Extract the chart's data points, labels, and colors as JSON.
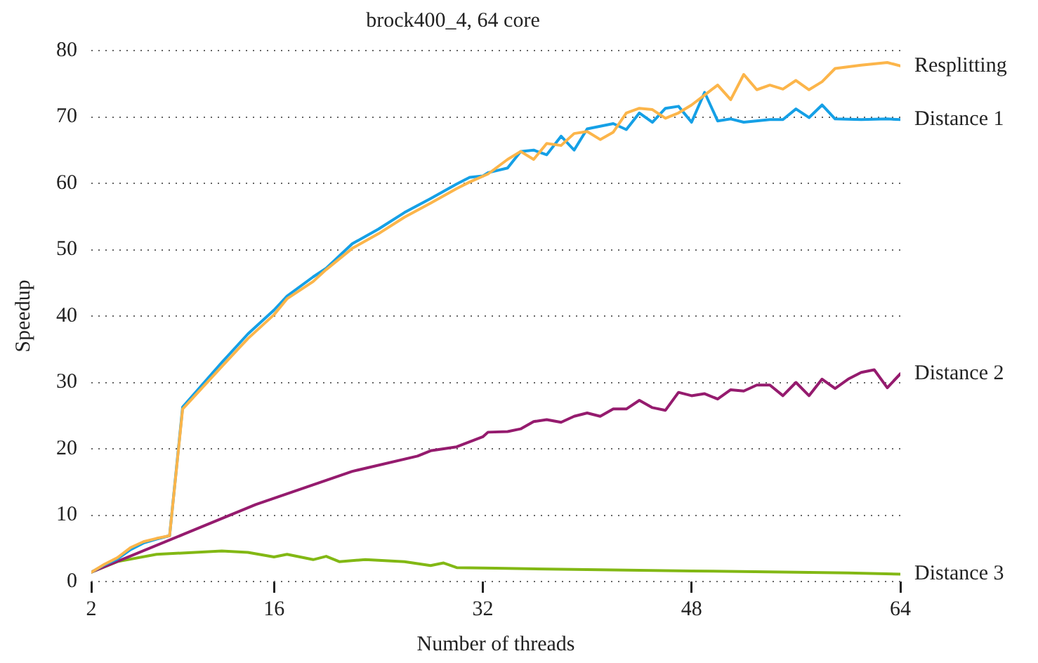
{
  "chart_data": {
    "type": "line",
    "title": "brock400_4, 64 core",
    "xlabel": "Number of threads",
    "ylabel": "Speedup",
    "xlim": [
      2,
      64
    ],
    "xticks": [
      2,
      16,
      32,
      48,
      64
    ],
    "ylim": [
      0,
      80
    ],
    "yticks": [
      0,
      10,
      20,
      30,
      40,
      50,
      60,
      70,
      80
    ],
    "grid": "y",
    "legend": false,
    "marker": "none",
    "line_style": "solid",
    "series": [
      {
        "name": "Resplitting",
        "color": "#fcb54a",
        "x": [
          2,
          3,
          4,
          5,
          6,
          7,
          8,
          9,
          12,
          14,
          16,
          17,
          19,
          20,
          22,
          24,
          26,
          28,
          30,
          31,
          32.4,
          33.9,
          34.9,
          35.9,
          36.9,
          38,
          39,
          40,
          41,
          42,
          43,
          44,
          45,
          46,
          47,
          48,
          49,
          50,
          51,
          52,
          53,
          54,
          55,
          56,
          57,
          58,
          59,
          61,
          63,
          64
        ],
        "values": [
          1.4,
          2.6,
          3.6,
          5.1,
          6.0,
          6.5,
          6.9,
          26.0,
          32.4,
          36.6,
          40.2,
          42.6,
          45.2,
          47.0,
          50.2,
          52.4,
          54.9,
          57.0,
          59.2,
          60.2,
          61.4,
          63.6,
          64.8,
          63.6,
          66.0,
          65.7,
          67.5,
          67.8,
          66.6,
          67.7,
          70.6,
          71.3,
          71.1,
          69.8,
          70.6,
          71.8,
          73.3,
          74.8,
          72.6,
          76.4,
          74.1,
          74.8,
          74.2,
          75.5,
          74.1,
          75.3,
          77.3,
          77.8,
          78.2,
          77.7
        ]
      },
      {
        "name": "Distance 1",
        "color": "#15a0e6",
        "x": [
          2,
          3,
          4,
          5,
          6,
          7,
          8,
          9,
          12,
          14,
          16,
          17,
          19,
          20,
          22,
          24,
          26,
          28,
          30,
          31,
          32,
          32.4,
          33.9,
          34.9,
          35.9,
          36.9,
          38,
          39,
          40,
          42,
          43,
          44,
          45,
          46,
          47,
          48,
          49,
          50,
          51,
          52,
          54,
          55,
          56,
          57,
          58,
          59,
          61,
          63,
          64
        ],
        "values": [
          1.4,
          2.5,
          3.4,
          4.8,
          5.8,
          6.4,
          6.9,
          26.3,
          33.0,
          37.3,
          40.9,
          43.0,
          45.9,
          47.2,
          50.9,
          53.1,
          55.6,
          57.7,
          59.9,
          60.9,
          61.1,
          61.6,
          62.3,
          64.8,
          65.0,
          64.3,
          67.1,
          65.0,
          68.2,
          69.0,
          68.1,
          70.6,
          69.2,
          71.3,
          71.6,
          69.2,
          73.7,
          69.4,
          69.7,
          69.2,
          69.6,
          69.6,
          71.2,
          69.9,
          71.8,
          69.7,
          69.6,
          69.7,
          69.6
        ]
      },
      {
        "name": "Distance 2",
        "color": "#951b6e",
        "x": [
          2,
          14.6,
          22,
          27,
          28,
          30,
          32,
          32.4,
          33.9,
          34.9,
          35.9,
          36.9,
          38,
          39,
          40,
          41,
          42,
          43,
          44,
          45,
          46,
          47,
          48,
          49,
          50,
          51,
          52,
          53,
          54,
          55,
          56,
          57,
          58,
          59,
          60,
          61,
          62,
          63,
          64
        ],
        "values": [
          1.4,
          11.6,
          16.6,
          18.9,
          19.7,
          20.3,
          21.8,
          22.5,
          22.6,
          23.0,
          24.1,
          24.4,
          24.0,
          24.9,
          25.4,
          24.9,
          26.0,
          26.0,
          27.3,
          26.2,
          25.8,
          28.5,
          28.0,
          28.3,
          27.5,
          28.9,
          28.7,
          29.6,
          29.6,
          28.0,
          30.0,
          28.0,
          30.5,
          29.1,
          30.5,
          31.5,
          31.9,
          29.2,
          31.3
        ]
      },
      {
        "name": "Distance 3",
        "color": "#82b814",
        "x": [
          2,
          4,
          7,
          12,
          14,
          16,
          17,
          19,
          20,
          21,
          23,
          26,
          28,
          29,
          30,
          33,
          40,
          48,
          56,
          60,
          64
        ],
        "values": [
          1.4,
          3.0,
          4.1,
          4.6,
          4.4,
          3.7,
          4.1,
          3.3,
          3.8,
          3.0,
          3.3,
          3.0,
          2.4,
          2.8,
          2.1,
          2.0,
          1.8,
          1.6,
          1.4,
          1.3,
          1.1
        ]
      }
    ]
  }
}
